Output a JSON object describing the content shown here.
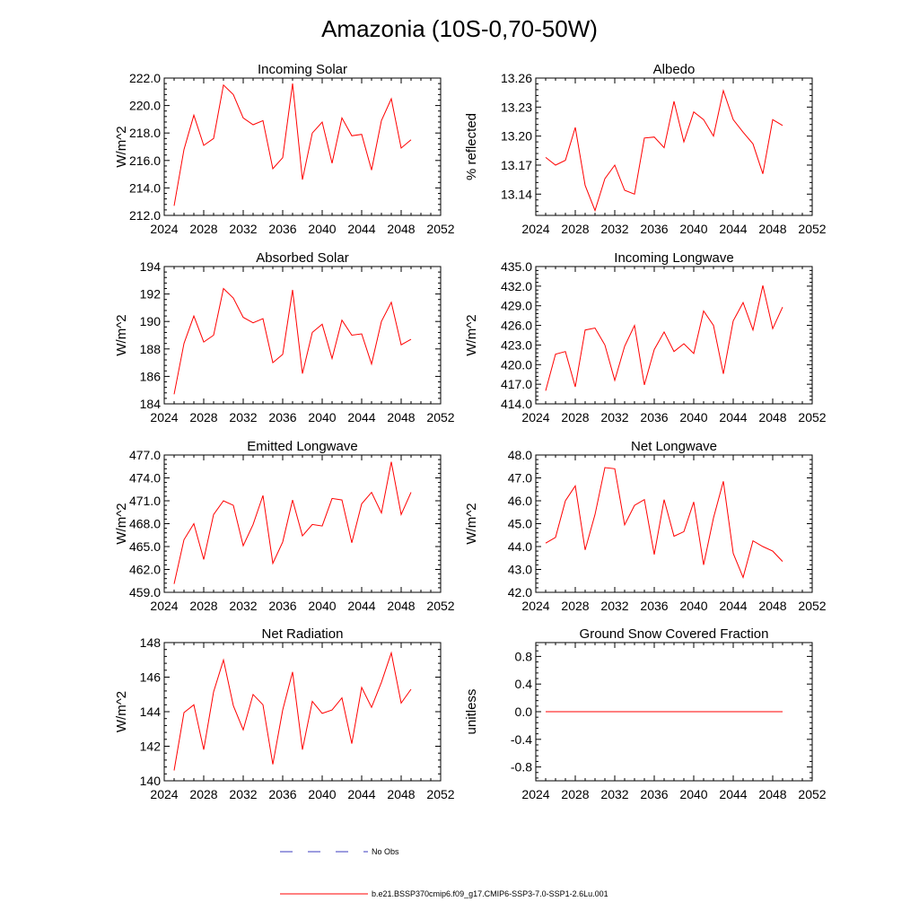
{
  "page_title": "Amazonia (10S-0,70-50W)",
  "colors": {
    "model_line": "#ff0000",
    "obs_line": "#3b3bbf",
    "frame": "#000000"
  },
  "legend": {
    "items": [
      {
        "label": "No Obs",
        "style": "dashed",
        "color": "#3b3bbf"
      },
      {
        "label": "b.e21.BSSP370cmip6.f09_g17.CMIP6-SSP3-7.0-SSP1-2.6Lu.001",
        "style": "solid",
        "color": "#ff0000"
      }
    ]
  },
  "chart_data": [
    {
      "type": "line",
      "title": "Incoming Solar",
      "ylabel": "W/m^2",
      "xlim": [
        2024,
        2052
      ],
      "xticks": [
        "2024",
        "2028",
        "2032",
        "2036",
        "2040",
        "2044",
        "2048",
        "2052"
      ],
      "ylim": [
        212.0,
        222.0
      ],
      "yticks": [
        "212.0",
        "214.0",
        "216.0",
        "218.0",
        "220.0",
        "222.0"
      ],
      "x": [
        2025,
        2026,
        2027,
        2028,
        2029,
        2030,
        2031,
        2032,
        2033,
        2034,
        2035,
        2036,
        2037,
        2038,
        2039,
        2040,
        2041,
        2042,
        2043,
        2044,
        2045,
        2046,
        2047,
        2048,
        2049
      ],
      "series": [
        {
          "values": [
            212.7,
            216.8,
            219.3,
            217.1,
            217.6,
            221.5,
            220.8,
            219.1,
            218.6,
            218.9,
            215.4,
            216.2,
            221.6,
            214.6,
            218.0,
            218.8,
            215.8,
            219.1,
            217.8,
            217.9,
            215.3,
            218.9,
            220.5,
            216.9,
            217.5
          ]
        }
      ]
    },
    {
      "type": "line",
      "title": "Albedo",
      "ylabel": "% reflected",
      "xlim": [
        2024,
        2052
      ],
      "xticks": [
        "2024",
        "2028",
        "2032",
        "2036",
        "2040",
        "2044",
        "2048",
        "2052"
      ],
      "ylim": [
        13.118,
        13.26
      ],
      "yticks": [
        "13.14",
        "13.17",
        "13.20",
        "13.23",
        "13.26"
      ],
      "yticks_values": [
        13.14,
        13.17,
        13.2,
        13.23,
        13.26
      ],
      "x": [
        2025,
        2026,
        2027,
        2028,
        2029,
        2030,
        2031,
        2032,
        2033,
        2034,
        2035,
        2036,
        2037,
        2038,
        2039,
        2040,
        2041,
        2042,
        2043,
        2044,
        2045,
        2046,
        2047,
        2048,
        2049
      ],
      "series": [
        {
          "values": [
            13.178,
            13.17,
            13.175,
            13.209,
            13.149,
            13.123,
            13.156,
            13.17,
            13.144,
            13.14,
            13.198,
            13.199,
            13.188,
            13.236,
            13.194,
            13.225,
            13.217,
            13.2,
            13.247,
            13.217,
            13.204,
            13.192,
            13.161,
            13.217,
            13.211
          ]
        }
      ]
    },
    {
      "type": "line",
      "title": "Absorbed Solar",
      "ylabel": "W/m^2",
      "xlim": [
        2024,
        2052
      ],
      "xticks": [
        "2024",
        "2028",
        "2032",
        "2036",
        "2040",
        "2044",
        "2048",
        "2052"
      ],
      "ylim": [
        184,
        194
      ],
      "yticks": [
        "184",
        "186",
        "188",
        "190",
        "192",
        "194"
      ],
      "x": [
        2025,
        2026,
        2027,
        2028,
        2029,
        2030,
        2031,
        2032,
        2033,
        2034,
        2035,
        2036,
        2037,
        2038,
        2039,
        2040,
        2041,
        2042,
        2043,
        2044,
        2045,
        2046,
        2047,
        2048,
        2049
      ],
      "series": [
        {
          "values": [
            184.7,
            188.4,
            190.4,
            188.5,
            189.0,
            192.4,
            191.7,
            190.3,
            189.9,
            190.2,
            187.0,
            187.6,
            192.3,
            186.2,
            189.2,
            189.8,
            187.3,
            190.1,
            189.0,
            189.1,
            186.9,
            190.0,
            191.4,
            188.3,
            188.7
          ]
        }
      ]
    },
    {
      "type": "line",
      "title": "Incoming Longwave",
      "ylabel": "W/m^2",
      "xlim": [
        2024,
        2052
      ],
      "xticks": [
        "2024",
        "2028",
        "2032",
        "2036",
        "2040",
        "2044",
        "2048",
        "2052"
      ],
      "ylim": [
        414.0,
        435.0
      ],
      "yticks": [
        "414.0",
        "417.0",
        "420.0",
        "423.0",
        "426.0",
        "429.0",
        "432.0",
        "435.0"
      ],
      "x": [
        2025,
        2026,
        2027,
        2028,
        2029,
        2030,
        2031,
        2032,
        2033,
        2034,
        2035,
        2036,
        2037,
        2038,
        2039,
        2040,
        2041,
        2042,
        2043,
        2044,
        2045,
        2046,
        2047,
        2048,
        2049
      ],
      "series": [
        {
          "values": [
            416.0,
            421.6,
            422.0,
            416.6,
            425.3,
            425.6,
            423.0,
            417.6,
            422.8,
            426.0,
            416.9,
            422.3,
            425.0,
            422.0,
            423.2,
            421.7,
            428.2,
            426.0,
            418.6,
            426.7,
            429.5,
            425.3,
            432.1,
            425.5,
            428.8
          ]
        }
      ]
    },
    {
      "type": "line",
      "title": "Emitted Longwave",
      "ylabel": "W/m^2",
      "xlim": [
        2024,
        2052
      ],
      "xticks": [
        "2024",
        "2028",
        "2032",
        "2036",
        "2040",
        "2044",
        "2048",
        "2052"
      ],
      "ylim": [
        459.0,
        477.0
      ],
      "yticks": [
        "459.0",
        "462.0",
        "465.0",
        "468.0",
        "471.0",
        "474.0",
        "477.0"
      ],
      "x": [
        2025,
        2026,
        2027,
        2028,
        2029,
        2030,
        2031,
        2032,
        2033,
        2034,
        2035,
        2036,
        2037,
        2038,
        2039,
        2040,
        2041,
        2042,
        2043,
        2044,
        2045,
        2046,
        2047,
        2048,
        2049
      ],
      "series": [
        {
          "values": [
            460.1,
            465.9,
            468.0,
            463.3,
            469.2,
            471.0,
            470.4,
            465.1,
            467.9,
            471.7,
            462.8,
            465.6,
            471.1,
            466.4,
            467.9,
            467.7,
            471.3,
            471.1,
            465.5,
            470.6,
            472.1,
            469.4,
            476.1,
            469.2,
            472.1
          ]
        }
      ]
    },
    {
      "type": "line",
      "title": "Net Longwave",
      "ylabel": "W/m^2",
      "xlim": [
        2024,
        2052
      ],
      "xticks": [
        "2024",
        "2028",
        "2032",
        "2036",
        "2040",
        "2044",
        "2048",
        "2052"
      ],
      "ylim": [
        42.0,
        48.0
      ],
      "yticks": [
        "42.0",
        "43.0",
        "44.0",
        "45.0",
        "46.0",
        "47.0",
        "48.0"
      ],
      "x": [
        2025,
        2026,
        2027,
        2028,
        2029,
        2030,
        2031,
        2032,
        2033,
        2034,
        2035,
        2036,
        2037,
        2038,
        2039,
        2040,
        2041,
        2042,
        2043,
        2044,
        2045,
        2046,
        2047,
        2048,
        2049
      ],
      "series": [
        {
          "values": [
            44.15,
            44.4,
            46.0,
            46.65,
            43.85,
            45.4,
            47.45,
            47.4,
            44.95,
            45.8,
            46.05,
            43.65,
            46.05,
            44.45,
            44.65,
            45.95,
            43.2,
            45.25,
            46.85,
            43.7,
            42.65,
            44.25,
            44.0,
            43.8,
            43.35
          ]
        }
      ]
    },
    {
      "type": "line",
      "title": "Net Radiation",
      "ylabel": "W/m^2",
      "xlim": [
        2024,
        2052
      ],
      "xticks": [
        "2024",
        "2028",
        "2032",
        "2036",
        "2040",
        "2044",
        "2048",
        "2052"
      ],
      "ylim": [
        140,
        148
      ],
      "yticks": [
        "140",
        "142",
        "144",
        "146",
        "148"
      ],
      "x": [
        2025,
        2026,
        2027,
        2028,
        2029,
        2030,
        2031,
        2032,
        2033,
        2034,
        2035,
        2036,
        2037,
        2038,
        2039,
        2040,
        2041,
        2042,
        2043,
        2044,
        2045,
        2046,
        2047,
        2048,
        2049
      ],
      "series": [
        {
          "values": [
            140.6,
            143.95,
            144.4,
            141.8,
            145.15,
            147.0,
            144.35,
            142.95,
            145.0,
            144.4,
            140.95,
            144.1,
            146.3,
            141.8,
            144.6,
            143.9,
            144.1,
            144.8,
            142.15,
            145.4,
            144.25,
            145.7,
            147.4,
            144.5,
            145.3
          ]
        }
      ]
    },
    {
      "type": "line",
      "title": "Ground Snow Covered Fraction",
      "ylabel": "unitless",
      "xlim": [
        2024,
        2052
      ],
      "xticks": [
        "2024",
        "2028",
        "2032",
        "2036",
        "2040",
        "2044",
        "2048",
        "2052"
      ],
      "ylim": [
        -1.0,
        1.0
      ],
      "yticks": [
        "-0.8",
        "-0.4",
        "0.0",
        "0.4",
        "0.8"
      ],
      "yticks_values": [
        -0.8,
        -0.4,
        0.0,
        0.4,
        0.8
      ],
      "x": [
        2025,
        2026,
        2027,
        2028,
        2029,
        2030,
        2031,
        2032,
        2033,
        2034,
        2035,
        2036,
        2037,
        2038,
        2039,
        2040,
        2041,
        2042,
        2043,
        2044,
        2045,
        2046,
        2047,
        2048,
        2049
      ],
      "series": [
        {
          "values": [
            0,
            0,
            0,
            0,
            0,
            0,
            0,
            0,
            0,
            0,
            0,
            0,
            0,
            0,
            0,
            0,
            0,
            0,
            0,
            0,
            0,
            0,
            0,
            0,
            0
          ]
        }
      ]
    }
  ]
}
